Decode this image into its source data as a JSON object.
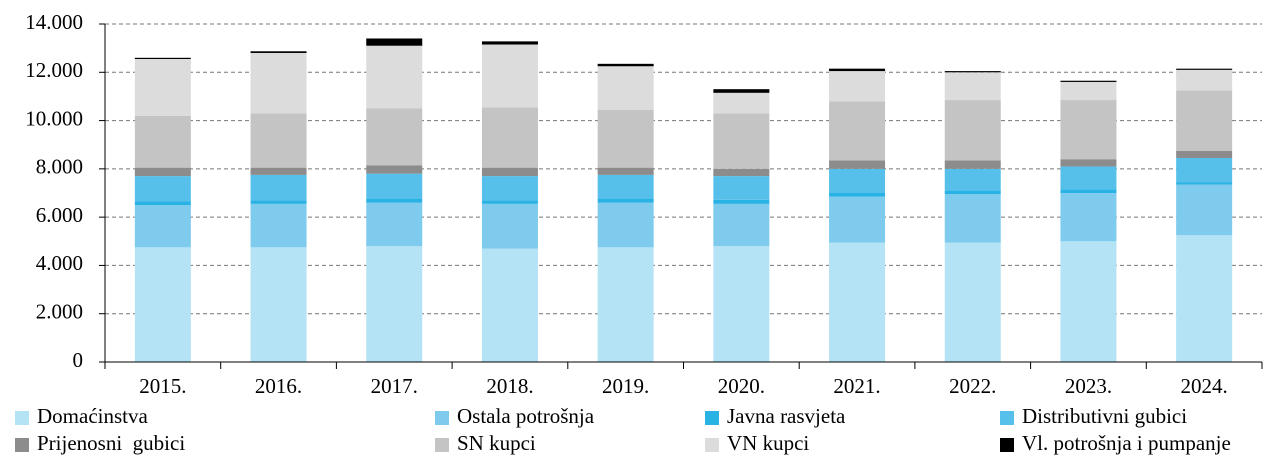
{
  "chart_data": {
    "type": "stacked_bar",
    "categories": [
      "2015.",
      "2016.",
      "2017.",
      "2018.",
      "2019.",
      "2020.",
      "2021.",
      "2022.",
      "2023.",
      "2024."
    ],
    "series": [
      {
        "name": "Domaćinstva",
        "color": "#b3e3f5",
        "values": [
          4750,
          4750,
          4800,
          4700,
          4750,
          4800,
          4950,
          4950,
          5000,
          5250
        ]
      },
      {
        "name": "Ostala potrošnja",
        "color": "#7ecbed",
        "values": [
          1750,
          1800,
          1800,
          1850,
          1850,
          1750,
          1900,
          2000,
          2000,
          2100
        ]
      },
      {
        "name": "Javna rasvjeta",
        "color": "#29b2e4",
        "values": [
          150,
          150,
          180,
          150,
          180,
          170,
          150,
          150,
          150,
          100
        ]
      },
      {
        "name": "Distributivni gubici",
        "color": "#56c0ea",
        "values": [
          1050,
          1050,
          1020,
          1000,
          970,
          980,
          1000,
          900,
          950,
          1000
        ]
      },
      {
        "name": "Prijenosni  gubici",
        "color": "#8c8c8c",
        "values": [
          350,
          300,
          350,
          350,
          300,
          300,
          350,
          350,
          300,
          300
        ]
      },
      {
        "name": "SN kupci",
        "color": "#c4c4c4",
        "values": [
          2150,
          2250,
          2350,
          2500,
          2400,
          2300,
          2450,
          2500,
          2450,
          2500
        ]
      },
      {
        "name": "VN kupci",
        "color": "#dcdcdc",
        "values": [
          2350,
          2500,
          2600,
          2600,
          1800,
          850,
          1250,
          1150,
          750,
          850
        ]
      },
      {
        "name": "Vl. potrošnja i pumpanje",
        "color": "#000000",
        "values": [
          50,
          70,
          300,
          130,
          100,
          150,
          100,
          50,
          50,
          50
        ]
      }
    ],
    "ylim": [
      0,
      14000
    ],
    "yticks": [
      0,
      {
        "value": 2000,
        "label": "2.000"
      },
      {
        "value": 4000,
        "label": "4.000"
      },
      {
        "value": 6000,
        "label": "6.000"
      },
      {
        "value": 8000,
        "label": "8.000"
      },
      {
        "value": 10000,
        "label": "10.000"
      },
      {
        "value": 12000,
        "label": "12.000"
      },
      {
        "value": 14000,
        "label": "14.000"
      }
    ],
    "grid": true
  }
}
